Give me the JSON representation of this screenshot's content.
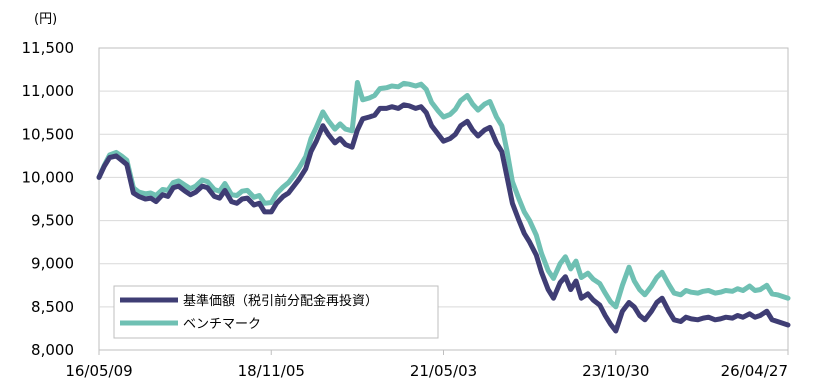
{
  "chart_data": {
    "type": "line",
    "unit_label": "(円)",
    "x_tick_labels": [
      "16/05/09",
      "18/11/05",
      "21/05/03",
      "23/10/30",
      "26/04/27"
    ],
    "y_ticks": [
      "8,000",
      "8,500",
      "9,000",
      "9,500",
      "10,000",
      "10,500",
      "11,000",
      "11,500"
    ],
    "ylim": [
      8000,
      11500
    ],
    "grid": true,
    "legend_position": "bottom-left",
    "colors": {
      "nav": "#3f3d74",
      "benchmark": "#6fc0b3"
    },
    "series": [
      {
        "name": "基準価額（税引前分配金再投資）",
        "color": "#3f3d74",
        "points": [
          [
            "2016-05-09",
            10000
          ],
          [
            "2016-06-06",
            10130
          ],
          [
            "2016-07-04",
            10230
          ],
          [
            "2016-08-08",
            10250
          ],
          [
            "2016-09-05",
            10200
          ],
          [
            "2016-10-03",
            10150
          ],
          [
            "2016-11-07",
            9820
          ],
          [
            "2016-12-05",
            9780
          ],
          [
            "2017-01-09",
            9750
          ],
          [
            "2017-02-06",
            9760
          ],
          [
            "2017-03-06",
            9720
          ],
          [
            "2017-04-10",
            9800
          ],
          [
            "2017-05-08",
            9780
          ],
          [
            "2017-06-05",
            9880
          ],
          [
            "2017-07-03",
            9900
          ],
          [
            "2017-08-07",
            9840
          ],
          [
            "2017-09-04",
            9800
          ],
          [
            "2017-10-02",
            9830
          ],
          [
            "2017-11-06",
            9900
          ],
          [
            "2017-12-04",
            9880
          ],
          [
            "2018-01-08",
            9780
          ],
          [
            "2018-02-05",
            9760
          ],
          [
            "2018-03-05",
            9850
          ],
          [
            "2018-04-09",
            9720
          ],
          [
            "2018-05-07",
            9700
          ],
          [
            "2018-06-04",
            9750
          ],
          [
            "2018-07-02",
            9760
          ],
          [
            "2018-08-06",
            9680
          ],
          [
            "2018-09-03",
            9700
          ],
          [
            "2018-10-01",
            9600
          ],
          [
            "2018-11-05",
            9600
          ],
          [
            "2018-12-03",
            9700
          ],
          [
            "2019-01-07",
            9780
          ],
          [
            "2019-02-04",
            9820
          ],
          [
            "2019-03-04",
            9900
          ],
          [
            "2019-04-01",
            9980
          ],
          [
            "2019-05-06",
            10100
          ],
          [
            "2019-06-03",
            10300
          ],
          [
            "2019-07-01",
            10420
          ],
          [
            "2019-08-05",
            10600
          ],
          [
            "2019-09-02",
            10500
          ],
          [
            "2019-10-07",
            10400
          ],
          [
            "2019-11-04",
            10450
          ],
          [
            "2019-12-02",
            10380
          ],
          [
            "2020-01-06",
            10350
          ],
          [
            "2020-02-03",
            10550
          ],
          [
            "2020-03-02",
            10680
          ],
          [
            "2020-04-06",
            10700
          ],
          [
            "2020-05-04",
            10720
          ],
          [
            "2020-06-01",
            10800
          ],
          [
            "2020-07-06",
            10800
          ],
          [
            "2020-08-03",
            10820
          ],
          [
            "2020-09-07",
            10800
          ],
          [
            "2020-10-05",
            10840
          ],
          [
            "2020-11-02",
            10830
          ],
          [
            "2020-12-07",
            10800
          ],
          [
            "2021-01-04",
            10820
          ],
          [
            "2021-02-01",
            10750
          ],
          [
            "2021-03-01",
            10600
          ],
          [
            "2021-04-05",
            10500
          ],
          [
            "2021-05-03",
            10420
          ],
          [
            "2021-06-07",
            10450
          ],
          [
            "2021-07-05",
            10500
          ],
          [
            "2021-08-02",
            10600
          ],
          [
            "2021-09-06",
            10650
          ],
          [
            "2021-10-04",
            10550
          ],
          [
            "2021-11-01",
            10480
          ],
          [
            "2021-12-06",
            10550
          ],
          [
            "2022-01-03",
            10580
          ],
          [
            "2022-02-07",
            10400
          ],
          [
            "2022-03-07",
            10300
          ],
          [
            "2022-04-04",
            10000
          ],
          [
            "2022-05-02",
            9700
          ],
          [
            "2022-06-06",
            9500
          ],
          [
            "2022-07-04",
            9350
          ],
          [
            "2022-08-01",
            9250
          ],
          [
            "2022-09-05",
            9100
          ],
          [
            "2022-10-03",
            8900
          ],
          [
            "2022-11-07",
            8700
          ],
          [
            "2022-12-05",
            8600
          ],
          [
            "2023-01-09",
            8780
          ],
          [
            "2023-02-06",
            8850
          ],
          [
            "2023-03-06",
            8700
          ],
          [
            "2023-04-03",
            8800
          ],
          [
            "2023-05-01",
            8600
          ],
          [
            "2023-06-05",
            8650
          ],
          [
            "2023-07-03",
            8580
          ],
          [
            "2023-08-07",
            8520
          ],
          [
            "2023-09-04",
            8400
          ],
          [
            "2023-10-02",
            8300
          ],
          [
            "2023-10-30",
            8220
          ],
          [
            "2023-12-04",
            8450
          ],
          [
            "2024-01-08",
            8550
          ],
          [
            "2024-02-05",
            8500
          ],
          [
            "2024-03-04",
            8400
          ],
          [
            "2024-04-01",
            8350
          ],
          [
            "2024-05-06",
            8450
          ],
          [
            "2024-06-03",
            8550
          ],
          [
            "2024-07-01",
            8600
          ],
          [
            "2024-08-05",
            8450
          ],
          [
            "2024-09-02",
            8350
          ],
          [
            "2024-10-07",
            8330
          ],
          [
            "2024-11-04",
            8380
          ],
          [
            "2024-12-02",
            8360
          ],
          [
            "2025-01-06",
            8350
          ],
          [
            "2025-02-03",
            8370
          ],
          [
            "2025-03-03",
            8380
          ],
          [
            "2025-04-07",
            8350
          ],
          [
            "2025-05-05",
            8360
          ],
          [
            "2025-06-02",
            8380
          ],
          [
            "2025-07-07",
            8370
          ],
          [
            "2025-08-04",
            8400
          ],
          [
            "2025-09-01",
            8380
          ],
          [
            "2025-10-06",
            8420
          ],
          [
            "2025-11-03",
            8380
          ],
          [
            "2025-12-01",
            8400
          ],
          [
            "2026-01-05",
            8450
          ],
          [
            "2026-02-02",
            8350
          ],
          [
            "2026-03-02",
            8330
          ],
          [
            "2026-04-27",
            8290
          ]
        ]
      },
      {
        "name": "ベンチマーク",
        "color": "#6fc0b3",
        "points": [
          [
            "2016-05-09",
            10000
          ],
          [
            "2016-06-06",
            10140
          ],
          [
            "2016-07-04",
            10260
          ],
          [
            "2016-08-08",
            10290
          ],
          [
            "2016-09-05",
            10250
          ],
          [
            "2016-10-03",
            10200
          ],
          [
            "2016-11-07",
            9880
          ],
          [
            "2016-12-05",
            9830
          ],
          [
            "2017-01-09",
            9810
          ],
          [
            "2017-02-06",
            9820
          ],
          [
            "2017-03-06",
            9790
          ],
          [
            "2017-04-10",
            9860
          ],
          [
            "2017-05-08",
            9850
          ],
          [
            "2017-06-05",
            9940
          ],
          [
            "2017-07-03",
            9960
          ],
          [
            "2017-08-07",
            9910
          ],
          [
            "2017-09-04",
            9870
          ],
          [
            "2017-10-02",
            9900
          ],
          [
            "2017-11-06",
            9970
          ],
          [
            "2017-12-04",
            9950
          ],
          [
            "2018-01-08",
            9860
          ],
          [
            "2018-02-05",
            9840
          ],
          [
            "2018-03-05",
            9930
          ],
          [
            "2018-04-09",
            9800
          ],
          [
            "2018-05-07",
            9790
          ],
          [
            "2018-06-04",
            9840
          ],
          [
            "2018-07-02",
            9850
          ],
          [
            "2018-08-06",
            9770
          ],
          [
            "2018-09-03",
            9790
          ],
          [
            "2018-10-01",
            9700
          ],
          [
            "2018-11-05",
            9710
          ],
          [
            "2018-12-03",
            9810
          ],
          [
            "2019-01-07",
            9890
          ],
          [
            "2019-02-04",
            9940
          ],
          [
            "2019-03-04",
            10020
          ],
          [
            "2019-04-01",
            10110
          ],
          [
            "2019-05-06",
            10240
          ],
          [
            "2019-06-03",
            10450
          ],
          [
            "2019-07-01",
            10580
          ],
          [
            "2019-08-05",
            10760
          ],
          [
            "2019-09-02",
            10660
          ],
          [
            "2019-10-07",
            10560
          ],
          [
            "2019-11-04",
            10620
          ],
          [
            "2019-12-02",
            10560
          ],
          [
            "2020-01-06",
            10540
          ],
          [
            "2020-02-03",
            11100
          ],
          [
            "2020-03-02",
            10900
          ],
          [
            "2020-04-06",
            10920
          ],
          [
            "2020-05-04",
            10950
          ],
          [
            "2020-06-01",
            11030
          ],
          [
            "2020-07-06",
            11040
          ],
          [
            "2020-08-03",
            11060
          ],
          [
            "2020-09-07",
            11050
          ],
          [
            "2020-10-05",
            11090
          ],
          [
            "2020-11-02",
            11080
          ],
          [
            "2020-12-07",
            11060
          ],
          [
            "2021-01-04",
            11080
          ],
          [
            "2021-02-01",
            11020
          ],
          [
            "2021-03-01",
            10870
          ],
          [
            "2021-04-05",
            10770
          ],
          [
            "2021-05-03",
            10700
          ],
          [
            "2021-06-07",
            10730
          ],
          [
            "2021-07-05",
            10790
          ],
          [
            "2021-08-02",
            10890
          ],
          [
            "2021-09-06",
            10950
          ],
          [
            "2021-10-04",
            10850
          ],
          [
            "2021-11-01",
            10780
          ],
          [
            "2021-12-06",
            10850
          ],
          [
            "2022-01-03",
            10880
          ],
          [
            "2022-02-07",
            10700
          ],
          [
            "2022-03-07",
            10600
          ],
          [
            "2022-04-04",
            10300
          ],
          [
            "2022-05-02",
            9950
          ],
          [
            "2022-06-06",
            9750
          ],
          [
            "2022-07-04",
            9600
          ],
          [
            "2022-08-01",
            9500
          ],
          [
            "2022-09-05",
            9330
          ],
          [
            "2022-10-03",
            9120
          ],
          [
            "2022-11-07",
            8920
          ],
          [
            "2022-12-05",
            8830
          ],
          [
            "2023-01-09",
            9000
          ],
          [
            "2023-02-06",
            9080
          ],
          [
            "2023-03-06",
            8940
          ],
          [
            "2023-04-03",
            9030
          ],
          [
            "2023-05-01",
            8840
          ],
          [
            "2023-06-05",
            8890
          ],
          [
            "2023-07-03",
            8820
          ],
          [
            "2023-08-07",
            8770
          ],
          [
            "2023-09-04",
            8660
          ],
          [
            "2023-10-02",
            8560
          ],
          [
            "2023-10-30",
            8500
          ],
          [
            "2023-12-04",
            8750
          ],
          [
            "2024-01-08",
            8960
          ],
          [
            "2024-02-05",
            8800
          ],
          [
            "2024-03-04",
            8700
          ],
          [
            "2024-04-01",
            8640
          ],
          [
            "2024-05-06",
            8740
          ],
          [
            "2024-06-03",
            8840
          ],
          [
            "2024-07-01",
            8900
          ],
          [
            "2024-08-05",
            8760
          ],
          [
            "2024-09-02",
            8660
          ],
          [
            "2024-10-07",
            8640
          ],
          [
            "2024-11-04",
            8690
          ],
          [
            "2024-12-02",
            8670
          ],
          [
            "2025-01-06",
            8660
          ],
          [
            "2025-02-03",
            8680
          ],
          [
            "2025-03-03",
            8690
          ],
          [
            "2025-04-07",
            8660
          ],
          [
            "2025-05-05",
            8670
          ],
          [
            "2025-06-02",
            8690
          ],
          [
            "2025-07-07",
            8680
          ],
          [
            "2025-08-04",
            8710
          ],
          [
            "2025-09-01",
            8690
          ],
          [
            "2025-10-06",
            8740
          ],
          [
            "2025-11-03",
            8690
          ],
          [
            "2025-12-01",
            8700
          ],
          [
            "2026-01-05",
            8750
          ],
          [
            "2026-02-02",
            8650
          ],
          [
            "2026-03-02",
            8640
          ],
          [
            "2026-04-27",
            8600
          ]
        ]
      }
    ]
  }
}
